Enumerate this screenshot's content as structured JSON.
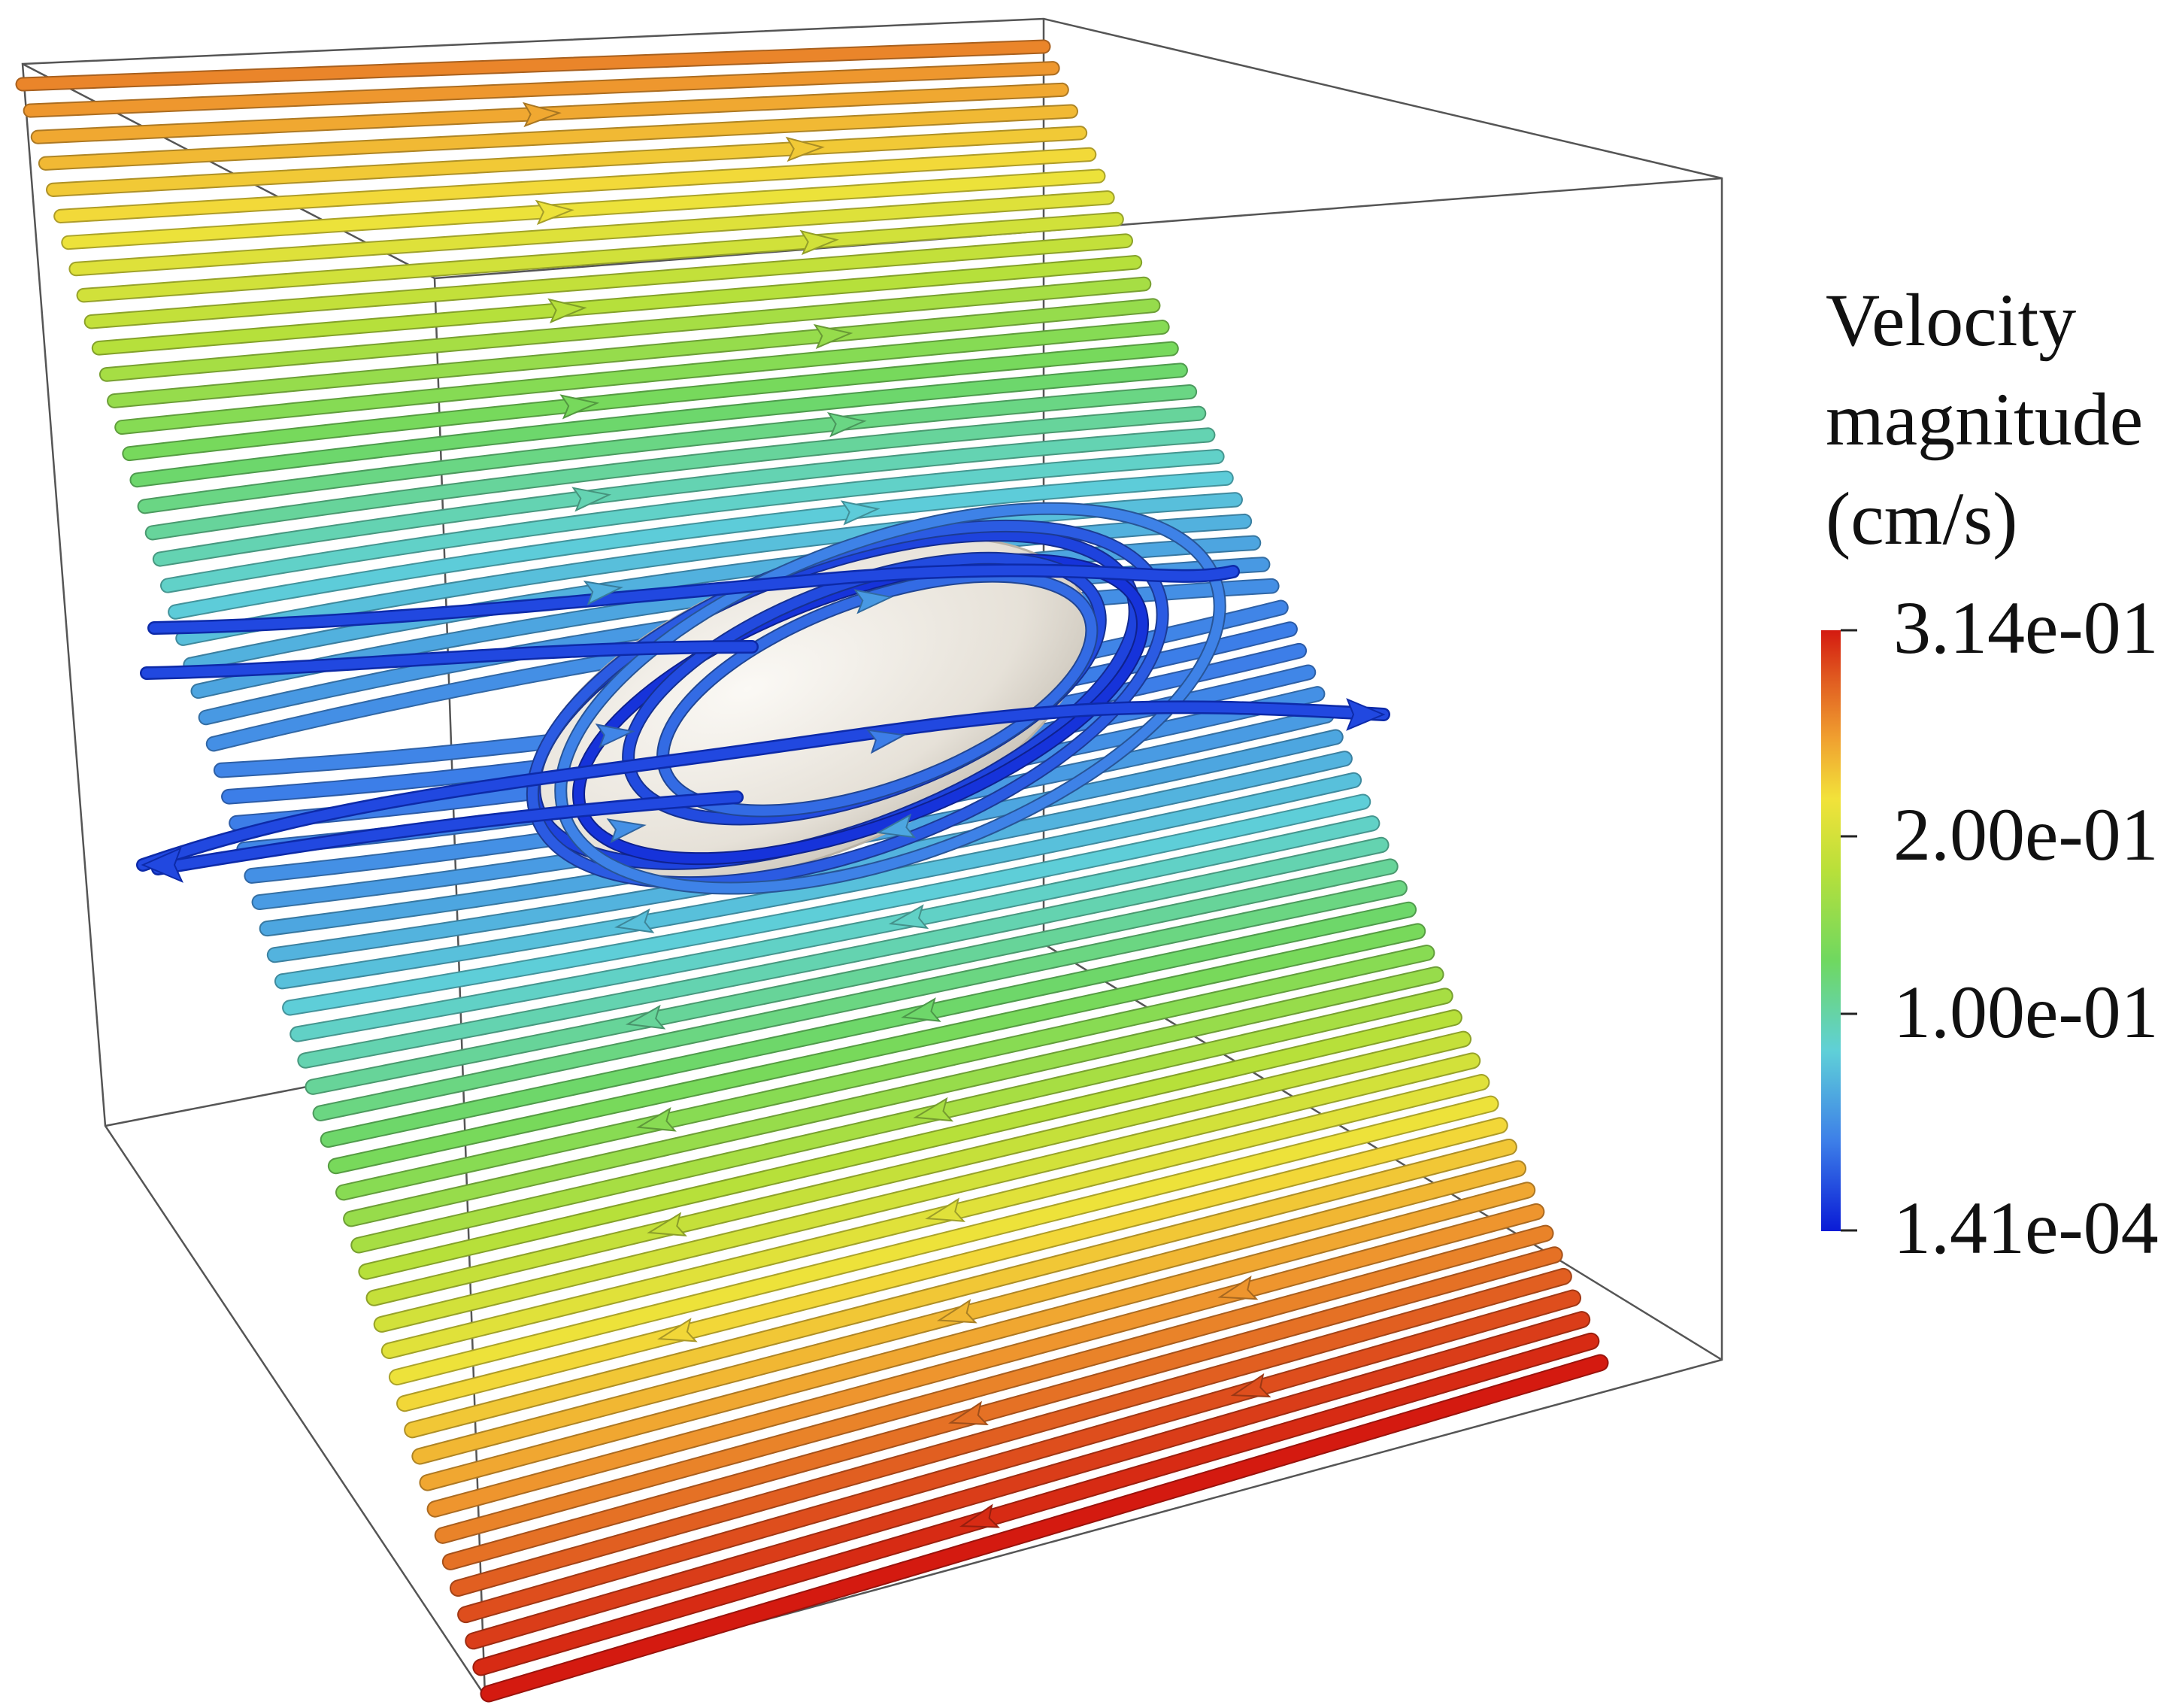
{
  "legend": {
    "title_lines": [
      "Velocity",
      "magnitude",
      "(cm/s)"
    ],
    "scale_max": 0.314,
    "scale_min": 0.000141,
    "ticks": [
      {
        "label": "3.14e-01",
        "value": 0.314
      },
      {
        "label": "2.00e-01",
        "value": 0.2
      },
      {
        "label": "1.00e-01",
        "value": 0.1
      },
      {
        "label": "1.41e-04",
        "value": 0.000141
      }
    ],
    "colormap": [
      "#0a1bd6",
      "#3d7fe8",
      "#5fd0d8",
      "#6fd860",
      "#b8e03a",
      "#f2e23a",
      "#f0a030",
      "#e05a20",
      "#d41a10"
    ]
  },
  "object_color": "#ece7df"
}
